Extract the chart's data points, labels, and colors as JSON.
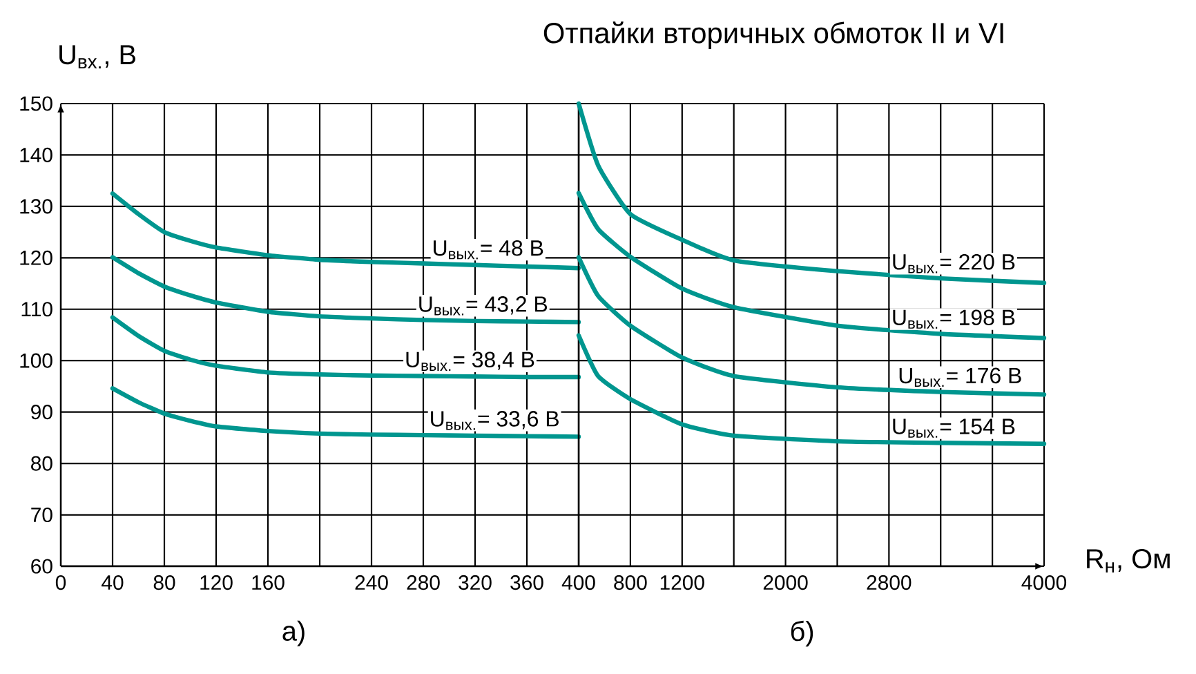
{
  "chart_data": [
    {
      "type": "line",
      "ylabel": "U$_{вх.}$, В",
      "xlabel": "а)",
      "x": [
        40,
        60,
        80,
        100,
        120,
        160,
        200,
        240,
        280,
        320,
        360,
        400
      ],
      "series": [
        {
          "color": "#00968f",
          "values": [
            132.5,
            128.5,
            125,
            123.3,
            122,
            120.5,
            119.6,
            119.2,
            118.9,
            118.6,
            118.3,
            118
          ]
        },
        {
          "color": "#00968f",
          "values": [
            120.1,
            117,
            114.4,
            112.7,
            111.3,
            109.5,
            108.6,
            108.2,
            107.9,
            107.7,
            107.6,
            107.5
          ]
        },
        {
          "color": "#00968f",
          "values": [
            108.4,
            104.8,
            101.9,
            100.2,
            99,
            97.7,
            97.3,
            97.1,
            97,
            96.9,
            96.8,
            96.8
          ]
        },
        {
          "color": "#00968f",
          "values": [
            94.6,
            91.9,
            89.7,
            88.3,
            87.2,
            86.3,
            85.8,
            85.6,
            85.5,
            85.4,
            85.3,
            85.2
          ]
        }
      ],
      "annotations": [
        {
          "text": "U$_{вых.}$= 48 В",
          "x": 330,
          "y": 118.6
        },
        {
          "text": "U$_{вых.}$= 43,2 В",
          "x": 326,
          "y": 107.7
        },
        {
          "text": "U$_{вых.}$= 38,4 В",
          "x": 316,
          "y": 96.9
        },
        {
          "text": "U$_{вых.}$= 33,6 В",
          "x": 335,
          "y": 85.4
        }
      ],
      "xlim": [
        0,
        400
      ],
      "ylim": [
        60,
        150
      ],
      "xticks": [
        0,
        40,
        80,
        120,
        160,
        {
          "value": 200,
          "label": null
        },
        240,
        280,
        320,
        360,
        400
      ],
      "yticks": [
        60,
        70,
        80,
        90,
        100,
        110,
        120,
        130,
        140,
        150
      ],
      "grid": true,
      "marker": "none",
      "line_style": "solid"
    },
    {
      "type": "line",
      "title": "Отпайки вторичных обмоток II и VI",
      "xlabel": "R$_{н}$, Ом",
      "x": [
        400,
        550,
        800,
        1200,
        1600,
        2400,
        3200,
        4000
      ],
      "series": [
        {
          "color": "#00968f",
          "values": [
            150,
            138,
            128.5,
            123.5,
            119.5,
            117.4,
            116,
            115.1
          ]
        },
        {
          "color": "#00968f",
          "values": [
            132.6,
            125.6,
            120.2,
            114,
            110.4,
            106.8,
            105.2,
            104.4
          ]
        },
        {
          "color": "#00968f",
          "values": [
            120.1,
            112.6,
            106.8,
            100.6,
            97,
            94.8,
            93.9,
            93.4
          ]
        },
        {
          "color": "#00968f",
          "values": [
            104.9,
            97,
            92.5,
            87.6,
            85.4,
            84.3,
            84,
            83.8
          ]
        }
      ],
      "annotations": [
        "б)",
        {
          "text": "U$_{вых.}$= 220 В",
          "x": 3300,
          "y": 115.9
        },
        {
          "text": "U$_{вых.}$= 198 В",
          "x": 3300,
          "y": 105.1
        },
        {
          "text": "U$_{вых.}$= 176 В",
          "x": 3350,
          "y": 93.8
        },
        {
          "text": "U$_{вых.}$= 154 В",
          "x": 3300,
          "y": 83.9
        }
      ],
      "xlim": [
        400,
        4000
      ],
      "ylim": [
        60,
        150
      ],
      "xticks": [
        {
          "value": 400,
          "label": null
        },
        800,
        1200,
        {
          "value": 1600,
          "label": null
        },
        2000,
        {
          "value": 2400,
          "label": null
        },
        2800,
        {
          "value": 3200,
          "label": null
        },
        {
          "value": 3600,
          "label": null
        },
        4000
      ],
      "yticks": [
        60,
        70,
        80,
        90,
        100,
        110,
        120,
        130,
        140,
        150
      ],
      "tick_labels": "x",
      "grid": true,
      "marker": "none",
      "line_style": "solid"
    }
  ]
}
